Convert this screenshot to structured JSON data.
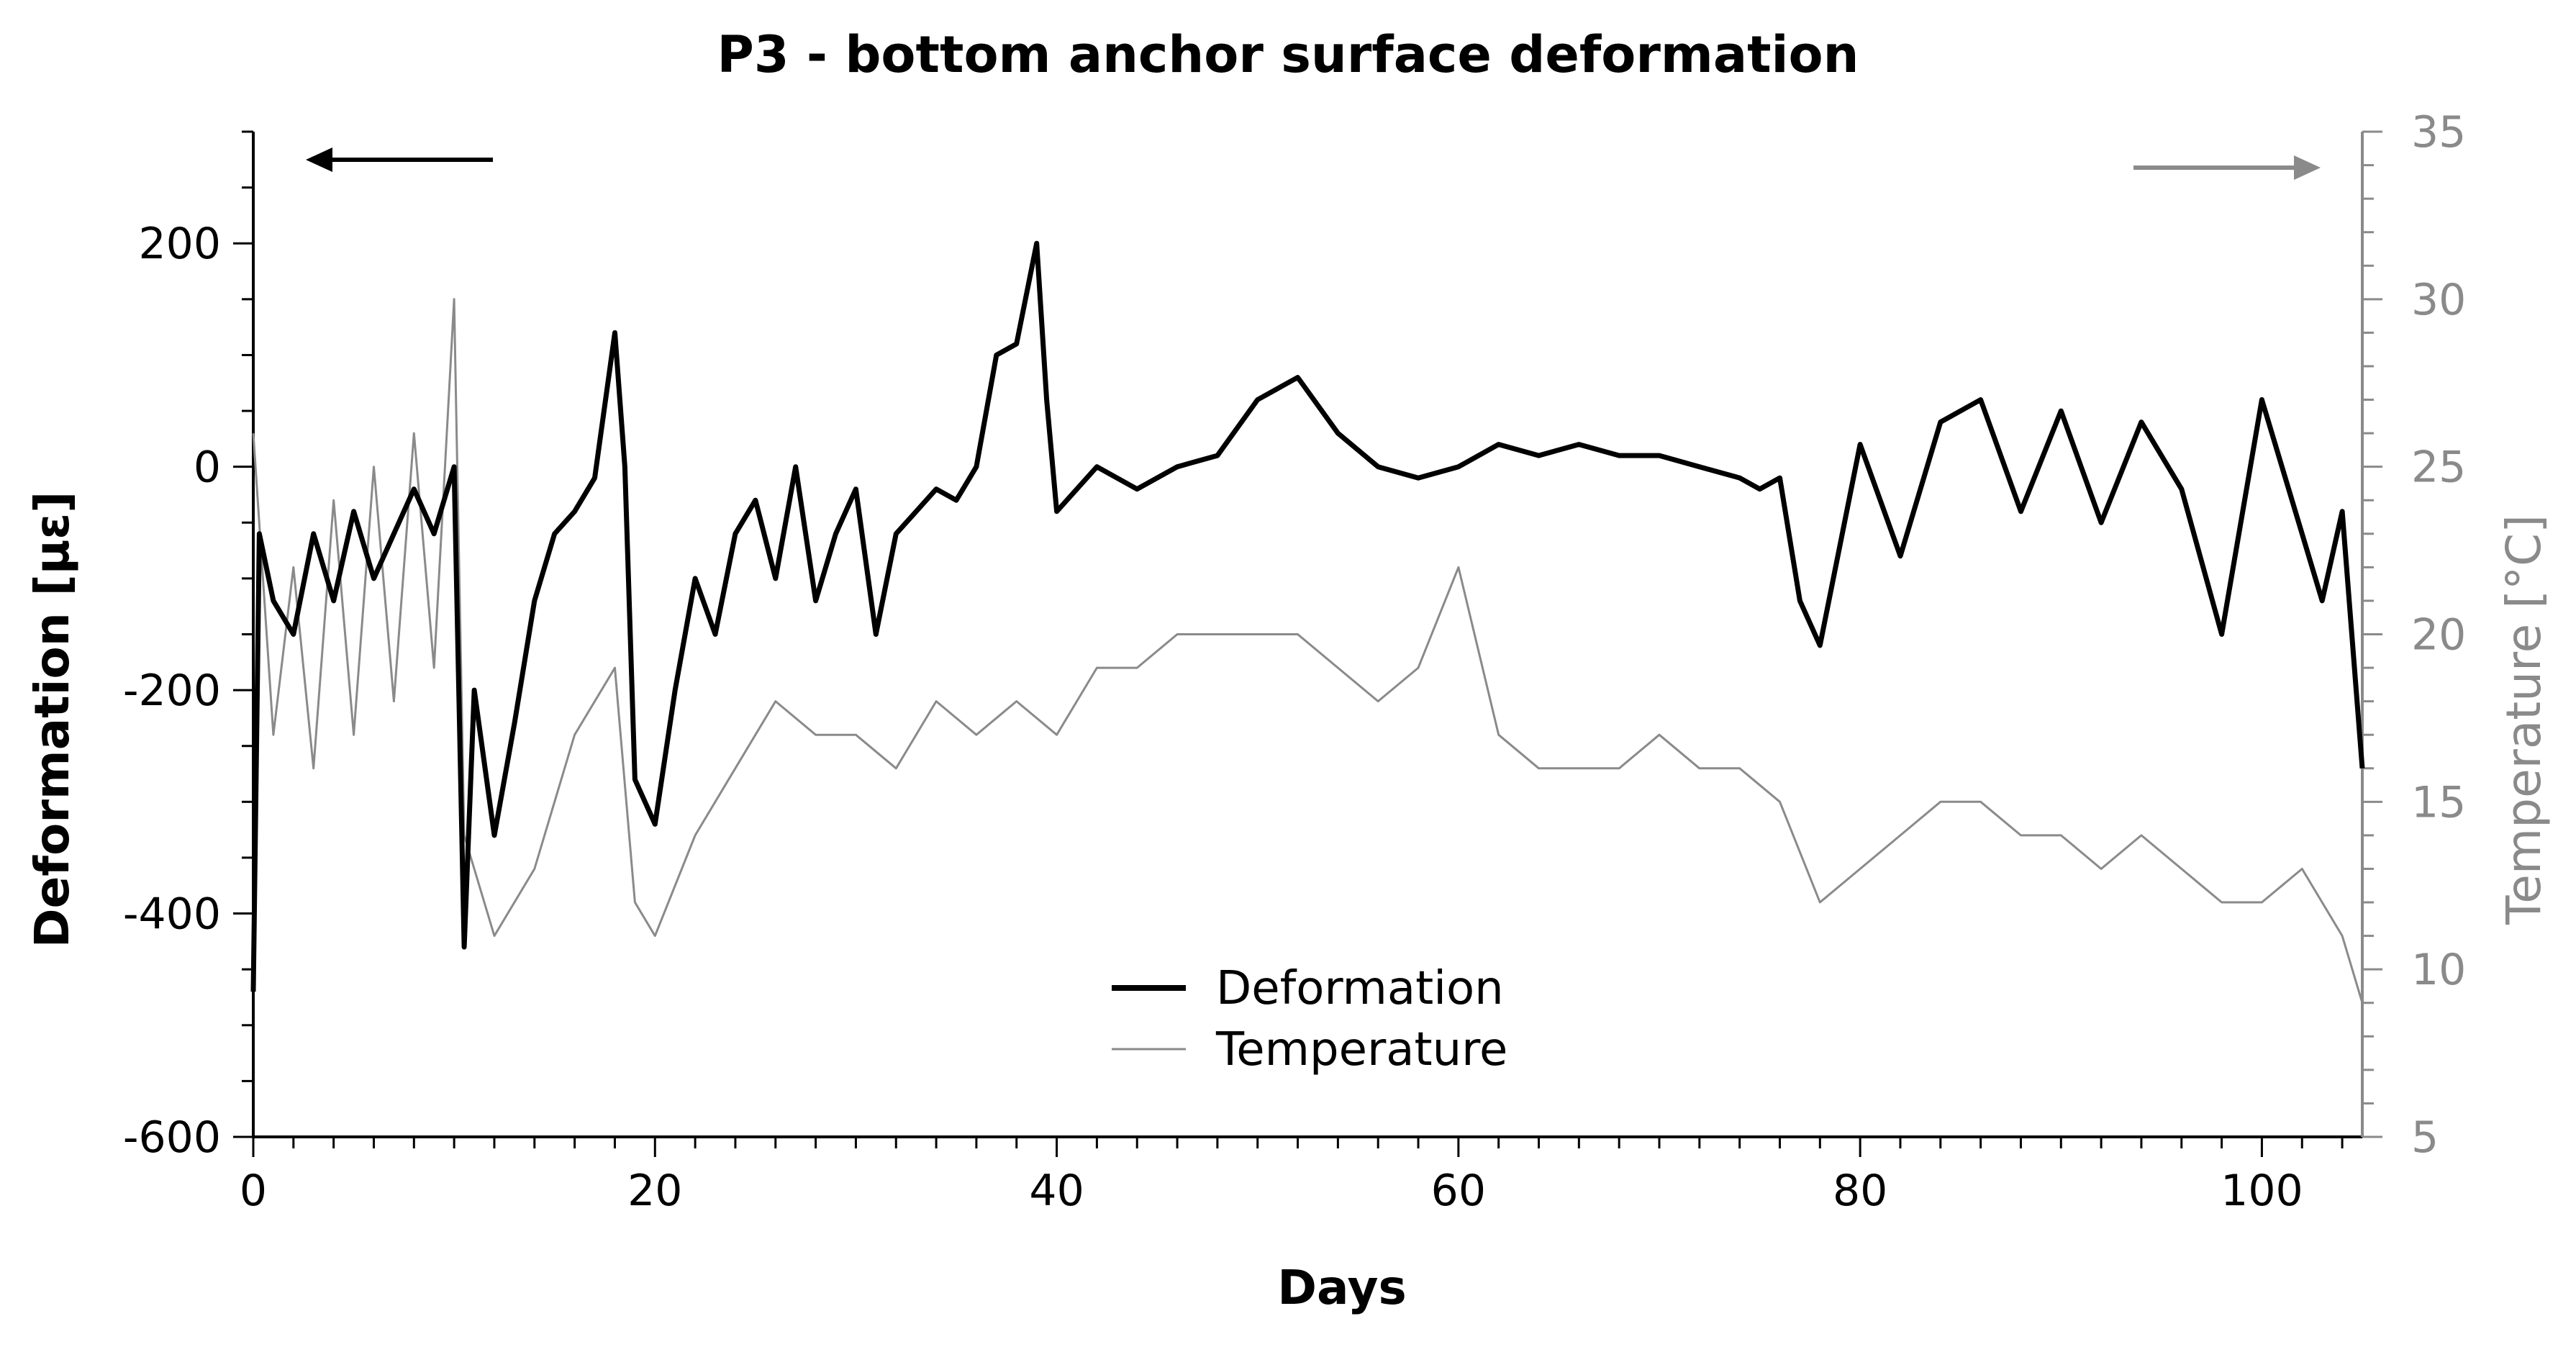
{
  "chart_data": {
    "type": "line",
    "title": "P3 - bottom anchor surface deformation",
    "xlabel": "Days",
    "ylabel": "Deformation [με]",
    "y2label": "Temperature [°C]",
    "xlim": [
      0,
      105
    ],
    "ylim": [
      -600,
      300
    ],
    "y2lim": [
      5,
      35
    ],
    "x_ticks": [
      0,
      20,
      40,
      60,
      80,
      100
    ],
    "y_ticks": [
      -600,
      -400,
      -200,
      0,
      200
    ],
    "y2_ticks": [
      5,
      10,
      15,
      20,
      25,
      30,
      35
    ],
    "grid": false,
    "legend_position": "bottom-center",
    "series": [
      {
        "name": "Deformation",
        "axis": "left",
        "color": "#000000",
        "description": "noisy daily-cycle strain signal",
        "x": [
          0,
          0.3,
          1,
          2,
          3,
          4,
          5,
          6,
          7,
          8,
          9,
          10,
          10.5,
          11,
          12,
          13,
          14,
          15,
          16,
          17,
          18,
          18.5,
          19,
          20,
          21,
          22,
          23,
          24,
          25,
          26,
          27,
          28,
          29,
          30,
          31,
          32,
          33,
          34,
          35,
          36,
          37,
          38,
          39,
          39.5,
          40,
          42,
          44,
          46,
          48,
          50,
          52,
          54,
          56,
          58,
          60,
          62,
          64,
          66,
          68,
          70,
          72,
          74,
          75,
          76,
          77,
          78,
          80,
          82,
          84,
          86,
          88,
          90,
          92,
          94,
          96,
          98,
          100,
          102,
          103,
          104,
          105
        ],
        "values": [
          -470,
          -60,
          -120,
          -150,
          -60,
          -120,
          -40,
          -100,
          -60,
          -20,
          -60,
          0,
          -430,
          -200,
          -330,
          -230,
          -120,
          -60,
          -40,
          -10,
          120,
          0,
          -280,
          -320,
          -200,
          -100,
          -150,
          -60,
          -30,
          -100,
          0,
          -120,
          -60,
          -20,
          -150,
          -60,
          -40,
          -20,
          -30,
          0,
          100,
          110,
          200,
          60,
          -40,
          0,
          -20,
          0,
          10,
          60,
          80,
          30,
          0,
          -10,
          0,
          20,
          10,
          20,
          10,
          10,
          0,
          -10,
          -20,
          -10,
          -120,
          -160,
          20,
          -80,
          40,
          60,
          -40,
          50,
          -50,
          40,
          -20,
          -150,
          60,
          -60,
          -120,
          -40,
          -270
        ]
      },
      {
        "name": "Temperature",
        "axis": "right",
        "color": "#8a8a8a",
        "description": "daily temperature oscillation",
        "x": [
          0,
          1,
          2,
          3,
          4,
          5,
          6,
          7,
          8,
          9,
          10,
          10.5,
          11,
          12,
          14,
          16,
          18,
          19,
          20,
          22,
          24,
          26,
          28,
          30,
          32,
          34,
          36,
          38,
          40,
          42,
          44,
          46,
          48,
          50,
          52,
          54,
          56,
          58,
          60,
          62,
          64,
          66,
          68,
          70,
          72,
          74,
          76,
          78,
          80,
          82,
          84,
          86,
          88,
          90,
          92,
          94,
          96,
          98,
          100,
          102,
          104,
          105
        ],
        "values": [
          26,
          17,
          22,
          16,
          24,
          17,
          25,
          18,
          26,
          19,
          30,
          14,
          13,
          11,
          13,
          17,
          19,
          12,
          11,
          14,
          16,
          18,
          17,
          17,
          16,
          18,
          17,
          18,
          17,
          19,
          19,
          20,
          20,
          20,
          20,
          19,
          18,
          19,
          22,
          17,
          16,
          16,
          16,
          17,
          16,
          16,
          15,
          12,
          13,
          14,
          15,
          15,
          14,
          14,
          13,
          14,
          13,
          12,
          12,
          13,
          11,
          9
        ]
      }
    ]
  }
}
